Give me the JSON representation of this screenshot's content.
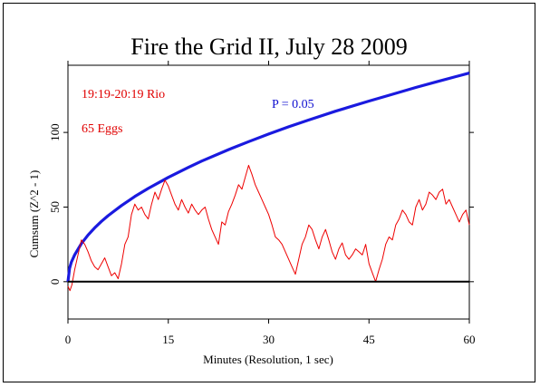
{
  "chart_data": {
    "type": "line",
    "title": "Fire the Grid II, July 28 2009",
    "xlabel": "Minutes (Resolution, 1 sec)",
    "ylabel": "Cumsum (Z^2 - 1)",
    "xlim": [
      0,
      60
    ],
    "ylim": [
      -25,
      145
    ],
    "x_ticks": [
      0,
      15,
      30,
      45,
      60
    ],
    "y_ticks": [
      0,
      50,
      100
    ],
    "annotations": [
      {
        "text": "19:19-20:19 Rio",
        "color": "#e00000"
      },
      {
        "text": "65 Eggs",
        "color": "#e00000"
      },
      {
        "text": "P = 0.05",
        "color": "#1010d0"
      }
    ],
    "series": [
      {
        "name": "P = 0.05",
        "color": "#1a1adf",
        "x": [
          0,
          0.25,
          0.5,
          1,
          2,
          3,
          4,
          5,
          6,
          8,
          10,
          12,
          15,
          18,
          20,
          24,
          27,
          30,
          33,
          36,
          40,
          45,
          48,
          52,
          55,
          58,
          60
        ],
        "y": [
          0,
          9,
          13,
          18,
          25.5,
          31.3,
          36.1,
          40.4,
          44.2,
          51,
          57.1,
          62.5,
          69.9,
          76.6,
          80.8,
          88.5,
          93.8,
          98.9,
          103.8,
          108.3,
          114.2,
          121,
          124.9,
          130.1,
          133.8,
          137.4,
          139.8
        ]
      },
      {
        "name": "Cumsum",
        "color": "#ee0000",
        "x": [
          0,
          0.3,
          0.6,
          1,
          1.5,
          2,
          2.5,
          3,
          3.5,
          4,
          4.5,
          5,
          5.5,
          6,
          6.5,
          7,
          7.5,
          8,
          8.5,
          9,
          9.5,
          10,
          10.5,
          11,
          11.5,
          12,
          12.5,
          13,
          13.5,
          14,
          14.5,
          15,
          15.5,
          16,
          16.5,
          17,
          17.5,
          18,
          18.5,
          19,
          19.5,
          20,
          20.5,
          21,
          21.5,
          22,
          22.5,
          23,
          23.5,
          24,
          24.5,
          25,
          25.5,
          26,
          26.5,
          27,
          27.5,
          28,
          28.5,
          29,
          29.5,
          30,
          30.5,
          31,
          31.5,
          32,
          32.5,
          33,
          33.5,
          34,
          34.5,
          35,
          35.5,
          36,
          36.5,
          37,
          37.5,
          38,
          38.5,
          39,
          39.5,
          40,
          40.5,
          41,
          41.5,
          42,
          42.5,
          43,
          43.5,
          44,
          44.5,
          45,
          45.5,
          46,
          46.5,
          47,
          47.5,
          48,
          48.5,
          49,
          49.5,
          50,
          50.5,
          51,
          51.5,
          52,
          52.5,
          53,
          53.5,
          54,
          54.5,
          55,
          55.5,
          56,
          56.5,
          57,
          57.5,
          58,
          58.5,
          59,
          59.5,
          60
        ],
        "y": [
          -3,
          -6,
          -2,
          8,
          18,
          28,
          25,
          20,
          14,
          10,
          8,
          12,
          16,
          10,
          4,
          6,
          2,
          12,
          25,
          30,
          45,
          52,
          48,
          50,
          45,
          42,
          52,
          60,
          55,
          62,
          68,
          64,
          58,
          52,
          48,
          55,
          50,
          46,
          52,
          48,
          45,
          48,
          50,
          42,
          35,
          30,
          25,
          40,
          38,
          47,
          52,
          58,
          65,
          62,
          70,
          78,
          72,
          65,
          60,
          55,
          50,
          45,
          38,
          30,
          28,
          25,
          20,
          15,
          10,
          5,
          15,
          25,
          30,
          38,
          35,
          28,
          22,
          30,
          35,
          28,
          20,
          15,
          22,
          26,
          18,
          15,
          18,
          22,
          20,
          18,
          25,
          12,
          6,
          0,
          8,
          15,
          25,
          30,
          28,
          38,
          42,
          48,
          45,
          40,
          38,
          50,
          55,
          48,
          52,
          60,
          58,
          55,
          60,
          62,
          52,
          55,
          50,
          45,
          40,
          45,
          48,
          38
        ]
      },
      {
        "name": "Zero",
        "color": "#000000",
        "x": [
          0,
          60
        ],
        "y": [
          0,
          0
        ]
      }
    ]
  }
}
